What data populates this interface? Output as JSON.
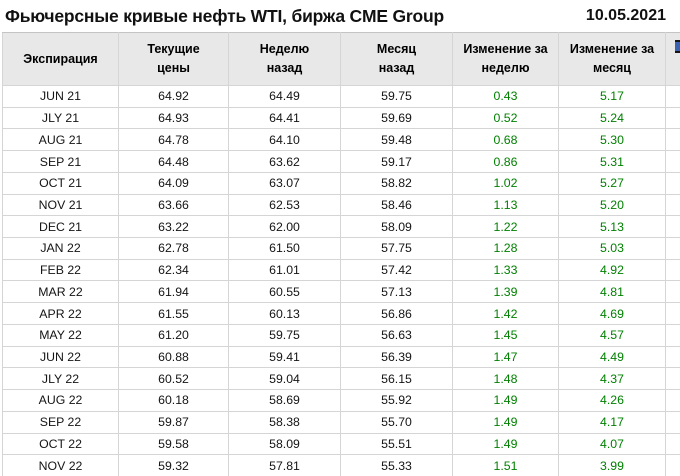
{
  "title": "Фьючерсные кривые нефть WTI, биржа CME Group",
  "date": "10.05.2021",
  "colors": {
    "positive": "#008000",
    "header_bg": "#e8e8e8",
    "border": "#d5d5d5",
    "text": "#141414"
  },
  "chart_data": {
    "type": "table",
    "title": "Фьючерсные кривые нефть WTI, биржа CME Group",
    "date": "10.05.2021",
    "columns": [
      "Экспирация",
      "Текущие\nцены",
      "Неделю\nназад",
      "Месяц\nназад",
      "Изменение за\nнеделю",
      "Изменение за\nмесяц"
    ],
    "rows": [
      [
        "JUN 21",
        "64.92",
        "64.49",
        "59.75",
        "0.43",
        "5.17"
      ],
      [
        "JLY 21",
        "64.93",
        "64.41",
        "59.69",
        "0.52",
        "5.24"
      ],
      [
        "AUG 21",
        "64.78",
        "64.10",
        "59.48",
        "0.68",
        "5.30"
      ],
      [
        "SEP 21",
        "64.48",
        "63.62",
        "59.17",
        "0.86",
        "5.31"
      ],
      [
        "OCT 21",
        "64.09",
        "63.07",
        "58.82",
        "1.02",
        "5.27"
      ],
      [
        "NOV 21",
        "63.66",
        "62.53",
        "58.46",
        "1.13",
        "5.20"
      ],
      [
        "DEC 21",
        "63.22",
        "62.00",
        "58.09",
        "1.22",
        "5.13"
      ],
      [
        "JAN 22",
        "62.78",
        "61.50",
        "57.75",
        "1.28",
        "5.03"
      ],
      [
        "FEB 22",
        "62.34",
        "61.01",
        "57.42",
        "1.33",
        "4.92"
      ],
      [
        "MAR 22",
        "61.94",
        "60.55",
        "57.13",
        "1.39",
        "4.81"
      ],
      [
        "APR 22",
        "61.55",
        "60.13",
        "56.86",
        "1.42",
        "4.69"
      ],
      [
        "MAY 22",
        "61.20",
        "59.75",
        "56.63",
        "1.45",
        "4.57"
      ],
      [
        "JUN 22",
        "60.88",
        "59.41",
        "56.39",
        "1.47",
        "4.49"
      ],
      [
        "JLY 22",
        "60.52",
        "59.04",
        "56.15",
        "1.48",
        "4.37"
      ],
      [
        "AUG 22",
        "60.18",
        "58.69",
        "55.92",
        "1.49",
        "4.26"
      ],
      [
        "SEP 22",
        "59.87",
        "58.38",
        "55.70",
        "1.49",
        "4.17"
      ],
      [
        "OCT 22",
        "59.58",
        "58.09",
        "55.51",
        "1.49",
        "4.07"
      ],
      [
        "NOV 22",
        "59.32",
        "57.81",
        "55.33",
        "1.51",
        "3.99"
      ]
    ]
  }
}
